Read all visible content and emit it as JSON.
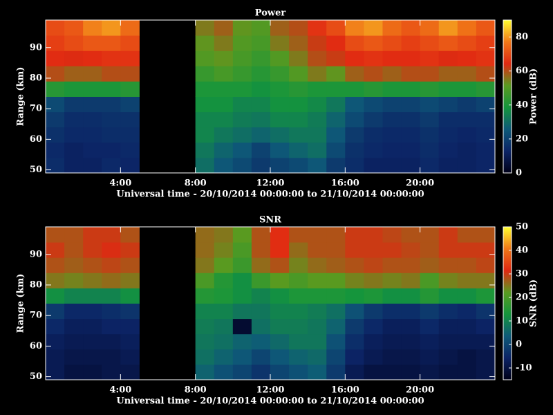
{
  "chart_data": [
    {
      "type": "heatmap",
      "title": "Power",
      "xlabel": "Universal time - 20/10/2014 00:00:00 to 21/10/2014 00:00:00",
      "ylabel": "Range (km)",
      "clabel": "Power (dB)",
      "x": [
        0,
        1,
        2,
        3,
        4,
        5,
        6,
        7,
        8,
        9,
        10,
        11,
        12,
        13,
        14,
        15,
        16,
        17,
        18,
        19,
        20,
        21,
        22,
        23,
        24
      ],
      "y": [
        49,
        54,
        59,
        64,
        69,
        74,
        79,
        84,
        89,
        94,
        99
      ],
      "values": [
        [
          15,
          12,
          12,
          14,
          13,
          null,
          null,
          null,
          30,
          25,
          22,
          18,
          20,
          22,
          25,
          18,
          15,
          12,
          12,
          12,
          14,
          12,
          12,
          13
        ],
        [
          14,
          12,
          13,
          13,
          14,
          null,
          null,
          null,
          32,
          28,
          25,
          20,
          25,
          28,
          30,
          22,
          16,
          14,
          13,
          13,
          15,
          13,
          12,
          13
        ],
        [
          16,
          14,
          14,
          15,
          15,
          null,
          null,
          null,
          35,
          32,
          30,
          28,
          30,
          32,
          32,
          25,
          18,
          15,
          14,
          14,
          16,
          14,
          13,
          14
        ],
        [
          18,
          15,
          15,
          16,
          16,
          null,
          null,
          null,
          35,
          35,
          33,
          32,
          35,
          35,
          33,
          28,
          22,
          18,
          16,
          16,
          18,
          15,
          15,
          15
        ],
        [
          22,
          18,
          18,
          18,
          20,
          null,
          null,
          null,
          38,
          38,
          35,
          35,
          38,
          38,
          36,
          32,
          25,
          22,
          20,
          20,
          22,
          20,
          18,
          20
        ],
        [
          42,
          40,
          40,
          40,
          42,
          null,
          null,
          null,
          40,
          40,
          40,
          38,
          40,
          42,
          40,
          40,
          40,
          42,
          40,
          40,
          42,
          40,
          40,
          42
        ],
        [
          60,
          58,
          58,
          60,
          60,
          null,
          null,
          null,
          45,
          48,
          45,
          42,
          45,
          50,
          55,
          52,
          58,
          60,
          58,
          60,
          60,
          58,
          58,
          60
        ],
        [
          65,
          64,
          65,
          66,
          66,
          null,
          null,
          null,
          50,
          52,
          48,
          45,
          50,
          55,
          60,
          62,
          65,
          66,
          65,
          65,
          66,
          64,
          65,
          66
        ],
        [
          68,
          70,
          72,
          72,
          70,
          null,
          null,
          null,
          52,
          55,
          50,
          48,
          55,
          58,
          62,
          65,
          70,
          72,
          70,
          68,
          70,
          72,
          70,
          68
        ],
        [
          70,
          72,
          78,
          80,
          75,
          null,
          null,
          null,
          55,
          58,
          52,
          50,
          58,
          60,
          66,
          70,
          78,
          80,
          75,
          72,
          75,
          80,
          76,
          72
        ]
      ],
      "xlim": [
        0,
        24
      ],
      "xticks": [
        {
          "value": 4,
          "label": "4:00"
        },
        {
          "value": 8,
          "label": "8:00"
        },
        {
          "value": 12,
          "label": "12:00"
        },
        {
          "value": 16,
          "label": "16:00"
        },
        {
          "value": 20,
          "label": "20:00"
        }
      ],
      "ylim": [
        49,
        99
      ],
      "yticks": [
        50,
        60,
        70,
        80,
        90
      ],
      "clim": [
        0,
        90
      ],
      "cticks": [
        0,
        20,
        40,
        60,
        80
      ],
      "colorscale": [
        "#000018",
        "#0c2466",
        "#0e5a78",
        "#14953c",
        "#5a9a20",
        "#e02812",
        "#f07818",
        "#ffff30"
      ]
    },
    {
      "type": "heatmap",
      "title": "SNR",
      "xlabel": "Universal time - 20/10/2014 00:00:00 to 21/10/2014 00:00:00",
      "ylabel": "Range (km)",
      "clabel": "SNR (dB)",
      "x": [
        0,
        1,
        2,
        3,
        4,
        5,
        6,
        7,
        8,
        9,
        10,
        11,
        12,
        13,
        14,
        15,
        16,
        17,
        18,
        19,
        20,
        21,
        22,
        23,
        24
      ],
      "y": [
        49,
        54,
        59,
        64,
        69,
        74,
        79,
        84,
        89,
        94,
        99
      ],
      "values": [
        [
          -8,
          -10,
          -10,
          -9,
          -9,
          null,
          null,
          null,
          5,
          2,
          0,
          -3,
          0,
          2,
          4,
          -2,
          -8,
          -10,
          -10,
          -10,
          -9,
          -10,
          -10,
          -9
        ],
        [
          -8,
          -9,
          -9,
          -9,
          -8,
          null,
          null,
          null,
          7,
          5,
          3,
          0,
          3,
          5,
          6,
          0,
          -6,
          -8,
          -9,
          -9,
          -8,
          -9,
          -10,
          -9
        ],
        [
          -7,
          -8,
          -8,
          -8,
          -7,
          null,
          null,
          null,
          8,
          7,
          5,
          4,
          6,
          8,
          8,
          2,
          -4,
          -7,
          -8,
          -8,
          -7,
          -8,
          -8,
          -8
        ],
        [
          -5,
          -7,
          -7,
          -6,
          -6,
          null,
          null,
          null,
          9,
          8,
          -12,
          7,
          9,
          9,
          8,
          5,
          -2,
          -5,
          -7,
          -7,
          -5,
          -7,
          -7,
          -6
        ],
        [
          -2,
          -5,
          -5,
          -4,
          -3,
          null,
          null,
          null,
          10,
          10,
          8,
          8,
          10,
          10,
          9,
          7,
          2,
          -2,
          -4,
          -4,
          -2,
          -4,
          -5,
          -3
        ],
        [
          12,
          10,
          10,
          10,
          12,
          null,
          null,
          null,
          15,
          14,
          12,
          10,
          12,
          14,
          14,
          14,
          13,
          14,
          12,
          12,
          15,
          12,
          12,
          14
        ],
        [
          25,
          24,
          25,
          26,
          25,
          null,
          null,
          null,
          20,
          15,
          12,
          18,
          22,
          20,
          22,
          22,
          24,
          25,
          24,
          25,
          20,
          24,
          25,
          25
        ],
        [
          28,
          27,
          28,
          29,
          28,
          null,
          null,
          null,
          25,
          22,
          18,
          26,
          28,
          24,
          26,
          27,
          28,
          29,
          28,
          28,
          27,
          28,
          28,
          29
        ],
        [
          30,
          28,
          30,
          31,
          30,
          null,
          null,
          null,
          26,
          24,
          20,
          28,
          32,
          26,
          28,
          28,
          30,
          30,
          30,
          29,
          28,
          30,
          30,
          30
        ],
        [
          28,
          28,
          30,
          30,
          28,
          null,
          null,
          null,
          26,
          25,
          22,
          28,
          32,
          28,
          28,
          28,
          30,
          30,
          29,
          28,
          28,
          30,
          28,
          28
        ]
      ],
      "xlim": [
        0,
        24
      ],
      "xticks": [
        {
          "value": 4,
          "label": "4:00"
        },
        {
          "value": 8,
          "label": "8:00"
        },
        {
          "value": 12,
          "label": "12:00"
        },
        {
          "value": 16,
          "label": "16:00"
        },
        {
          "value": 20,
          "label": "20:00"
        }
      ],
      "ylim": [
        49,
        99
      ],
      "yticks": [
        50,
        60,
        70,
        80,
        90
      ],
      "clim": [
        -15,
        50
      ],
      "cticks": [
        -10,
        0,
        10,
        20,
        30,
        40,
        50
      ],
      "colorscale": [
        "#000018",
        "#0c2466",
        "#0e5a78",
        "#14953c",
        "#5a9a20",
        "#e02812",
        "#f07818",
        "#ffff30"
      ]
    }
  ]
}
